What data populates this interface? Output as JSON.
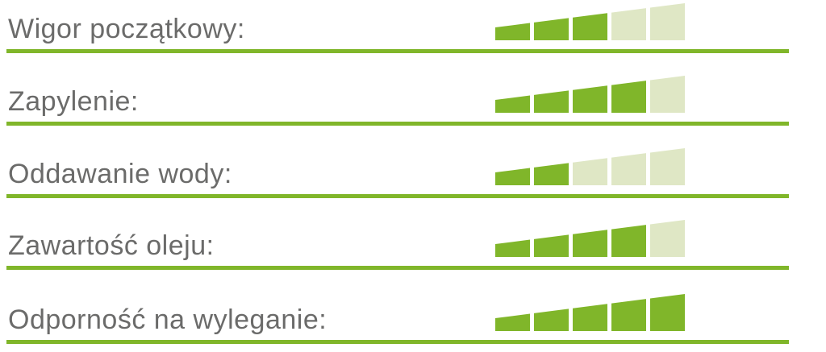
{
  "colors": {
    "background": "#ffffff",
    "bar_filled": "#80b62a",
    "bar_empty": "#dfe7c5",
    "divider": "#80b62a",
    "label_text": "#6b6b6a"
  },
  "chart_data": {
    "type": "bar",
    "subtype": "rating-scale-ascending-bars",
    "title": "",
    "scale_max": 5,
    "categories": [
      "Wigor początkowy:",
      "Zapylenie:",
      "Oddawanie wody:",
      "Zawartość oleju:",
      "Odporność na wyleganie:"
    ],
    "values": [
      3,
      4,
      2,
      4,
      5
    ],
    "legend": "none",
    "grid": false,
    "bar_geometry": {
      "segment_width": 43,
      "segment_gap": 5,
      "min_height": 16,
      "max_height": 46
    }
  }
}
